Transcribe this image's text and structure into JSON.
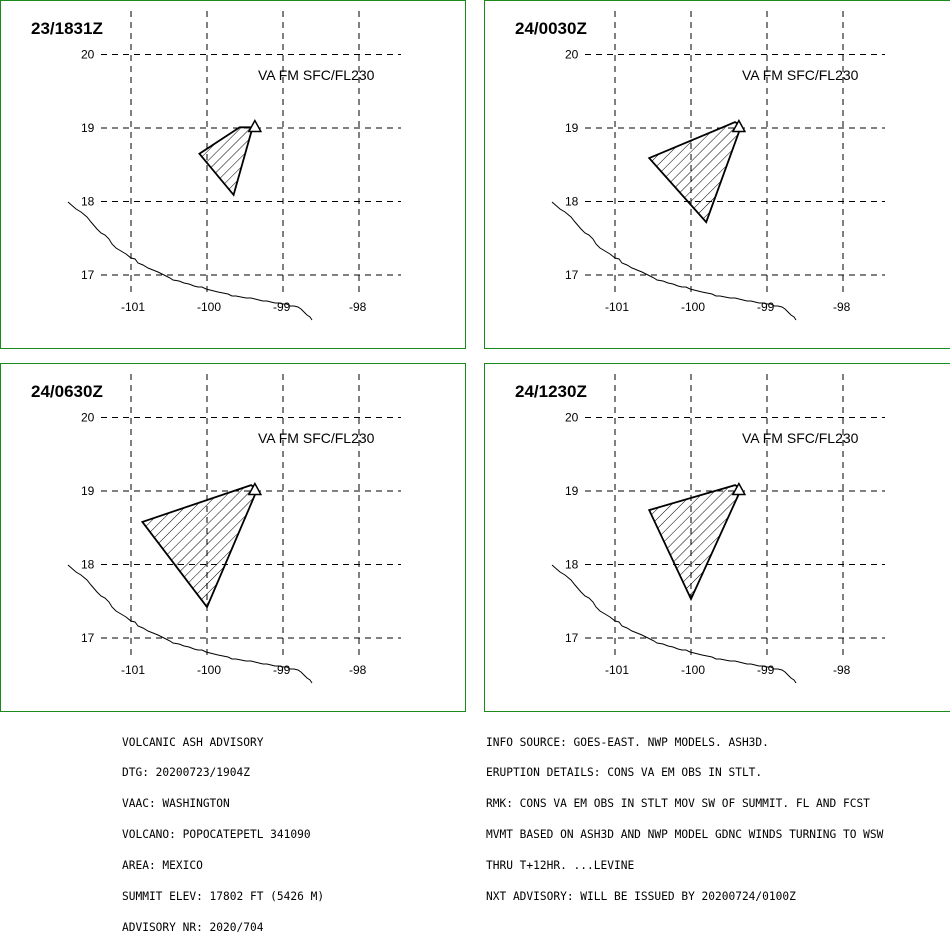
{
  "panels": [
    {
      "time": "23/1831Z",
      "va_label": "VA FM SFC/FL230",
      "polygon": [
        [
          -99.57,
          19.01
        ],
        [
          -100.1,
          18.65
        ],
        [
          -99.65,
          18.09
        ],
        [
          -99.4,
          19.01
        ]
      ]
    },
    {
      "time": "24/0030Z",
      "va_label": "VA FM SFC/FL230",
      "polygon": [
        [
          -99.42,
          19.08
        ],
        [
          -100.55,
          18.59
        ],
        [
          -99.8,
          17.72
        ],
        [
          -99.34,
          19.03
        ]
      ]
    },
    {
      "time": "24/0630Z",
      "va_label": "VA FM SFC/FL230",
      "polygon": [
        [
          -99.42,
          19.08
        ],
        [
          -100.85,
          18.58
        ],
        [
          -100.0,
          17.42
        ],
        [
          -99.34,
          19.02
        ]
      ]
    },
    {
      "time": "24/1230Z",
      "va_label": "VA FM SFC/FL230",
      "polygon": [
        [
          -99.42,
          19.08
        ],
        [
          -100.55,
          18.74
        ],
        [
          -100.0,
          17.53
        ],
        [
          -99.34,
          19.03
        ]
      ]
    }
  ],
  "map": {
    "lat_labels": [
      "20",
      "19",
      "18",
      "17"
    ],
    "lon_labels": [
      "-101",
      "-100",
      "-99",
      "-98"
    ],
    "lat_values": [
      20,
      19,
      18,
      17
    ],
    "lon_values": [
      -101,
      -100,
      -99,
      -98
    ],
    "volcano": {
      "lon": -99.37,
      "lat": 19.02
    }
  },
  "advisory_left": [
    "VOLCANIC ASH ADVISORY",
    "DTG: 20200723/1904Z",
    "VAAC: WASHINGTON",
    "VOLCANO: POPOCATEPETL 341090",
    "AREA: MEXICO",
    "SUMMIT ELEV: 17802 FT (5426 M)",
    "ADVISORY NR: 2020/704"
  ],
  "advisory_right": [
    "INFO SOURCE: GOES-EAST. NWP MODELS. ASH3D.",
    "ERUPTION DETAILS: CONS VA EM OBS IN STLT.",
    "RMK: CONS VA EM OBS IN STLT MOV SW OF SUMMIT. FL AND FCST",
    "MVMT BASED ON ASH3D AND NWP MODEL GDNC WINDS TURNING TO WSW",
    "THRU T+12HR. ...LEVINE",
    "NXT ADVISORY: WILL BE ISSUED BY 20200724/0100Z"
  ],
  "colors": {
    "border": "#1a8a1a",
    "lines": "#000000"
  }
}
